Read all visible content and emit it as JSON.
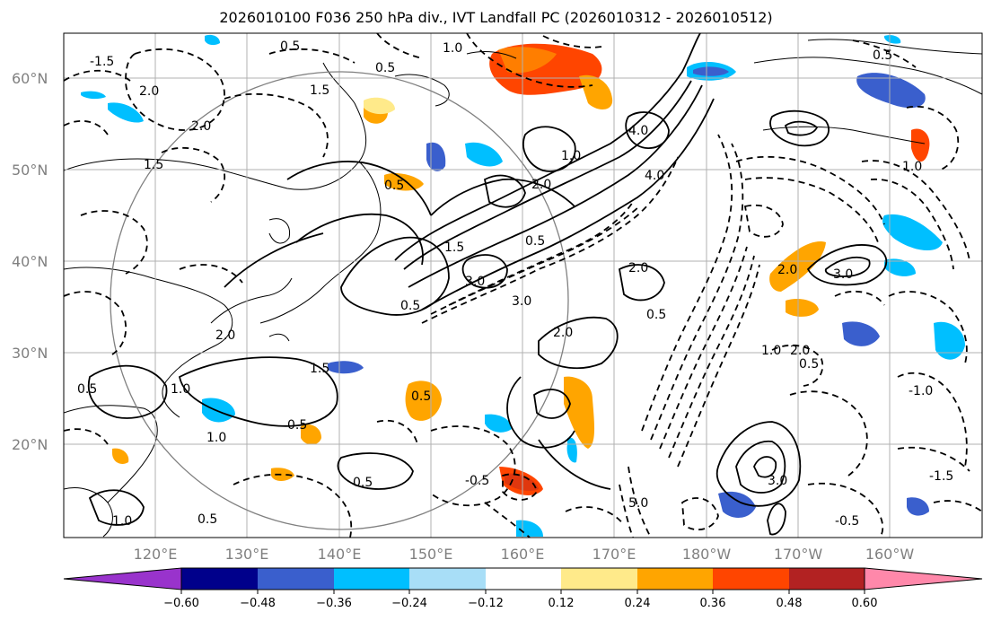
{
  "title": "2026010100 F036 250 hPa div., IVT Landfall PC (2026010312 - 2026010512)",
  "lat_labels": [
    "60°N",
    "50°N",
    "40°N",
    "30°N",
    "20°N"
  ],
  "lon_labels": [
    "120°E",
    "130°E",
    "140°E",
    "150°E",
    "160°E",
    "170°E",
    "180°W",
    "170°W",
    "160°W"
  ],
  "colorbar": {
    "colors": [
      "#9933cc",
      "#00008b",
      "#3a5fcd",
      "#00bfff",
      "#a8def7",
      "#ffffff",
      "#ffea8a",
      "#ffa500",
      "#ff4500",
      "#b22222",
      "#ff88aa"
    ],
    "tick_labels": [
      "−0.60",
      "−0.48",
      "−0.36",
      "−0.24",
      "−0.12",
      "0.12",
      "0.24",
      "0.36",
      "0.48",
      "0.60"
    ],
    "extend": "both"
  },
  "contour_labels": [
    "0.5",
    "1.0",
    "1.5",
    "2.0",
    "3.0",
    "4.0",
    "5.0",
    "-0.5",
    "-1.5",
    "4.0",
    "3.0",
    "2.0",
    "1.0",
    "0.5",
    "-0.5",
    "1.0",
    "0.5",
    "3.0",
    "2.0",
    "1.5",
    "2.0",
    "1.0",
    "0.5",
    "0.5",
    "1.0",
    "0.5",
    "-1.5",
    "1.5",
    "0.5",
    "5.0",
    "0.5",
    "0.5",
    "1.0",
    "-1.0",
    "2.0"
  ]
}
